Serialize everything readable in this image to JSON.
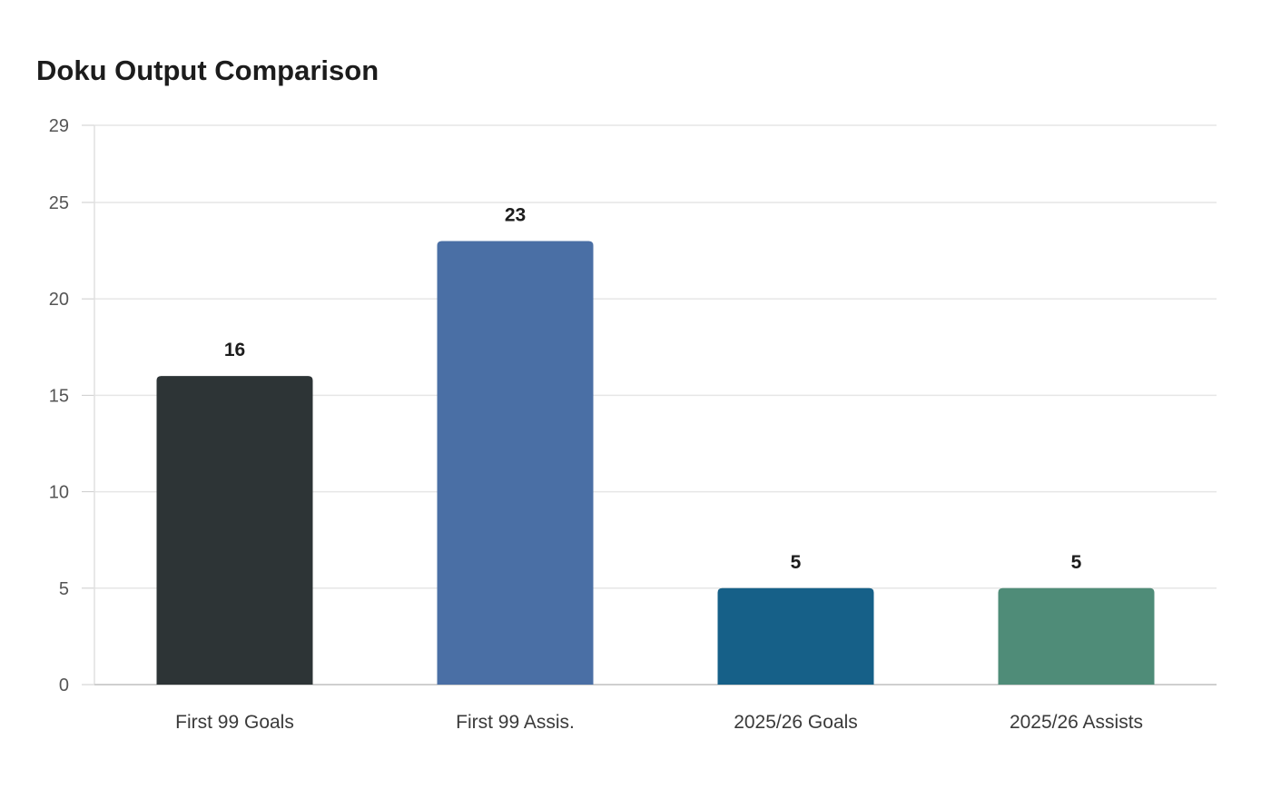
{
  "chart_data": {
    "type": "bar",
    "title": "Doku Output Comparison",
    "xlabel": "",
    "ylabel": "",
    "categories": [
      "First 99 Goals",
      "First 99 Assis.",
      "2025/26 Goals",
      "2025/26 Assists"
    ],
    "values": [
      16,
      23,
      5,
      5
    ],
    "data_labels": [
      "16",
      "23",
      "5",
      "5"
    ],
    "colors": [
      "#2d3436",
      "#4a6fa5",
      "#166088",
      "#4f8c78"
    ],
    "ylim": [
      0,
      29
    ],
    "yticks": [
      0,
      5,
      10,
      15,
      20,
      25,
      29
    ],
    "ytick_labels": [
      "0",
      "5",
      "10",
      "15",
      "20",
      "25",
      "29"
    ],
    "grid": true,
    "legend": "none"
  }
}
